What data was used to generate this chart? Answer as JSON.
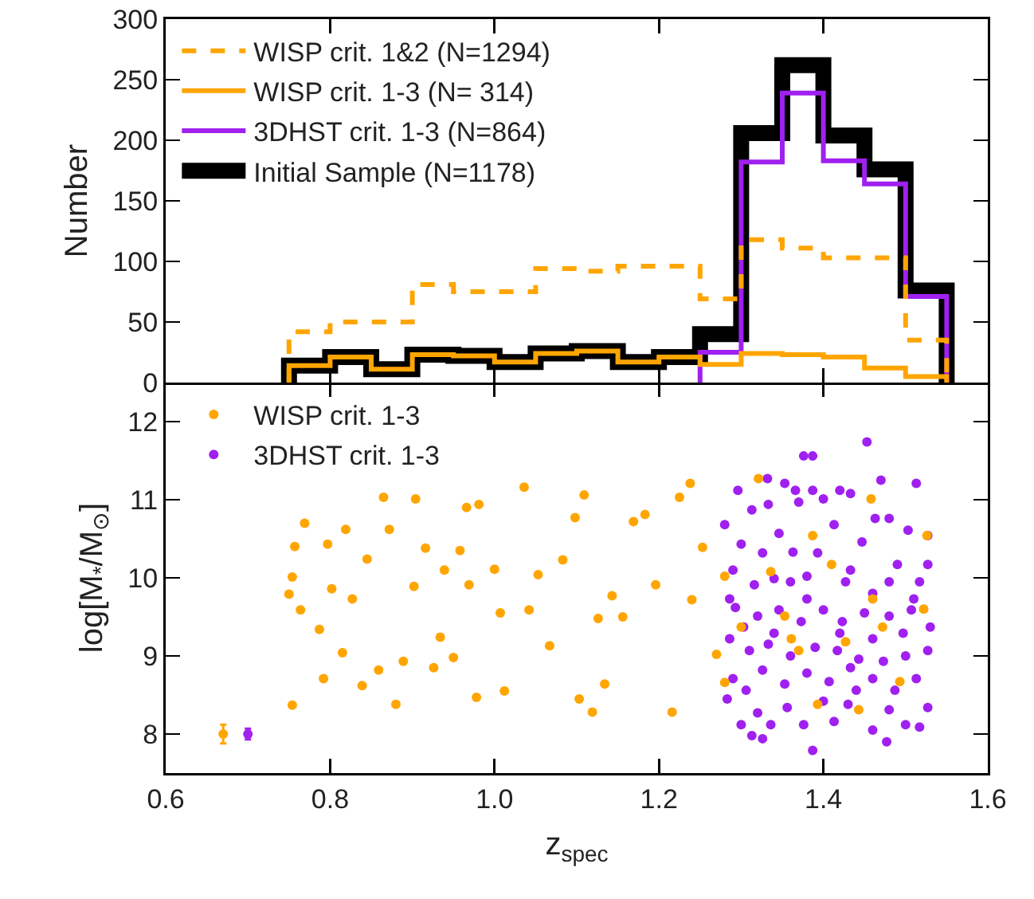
{
  "chart_data": [
    {
      "type": "histogram",
      "ylabel": "Number",
      "xlim": [
        0.6,
        1.6
      ],
      "xticks": [
        0.6,
        0.8,
        1,
        1.2,
        1.4,
        1.6
      ],
      "ylim": [
        0,
        300
      ],
      "yticks": [
        0,
        50,
        100,
        150,
        200,
        250,
        300
      ],
      "tick_labels": "y",
      "legend": "top left",
      "bins": [
        0.75,
        0.8,
        0.85,
        0.9,
        0.95,
        1.0,
        1.05,
        1.1,
        1.15,
        1.2,
        1.25,
        1.3,
        1.35,
        1.4,
        1.45,
        1.5,
        1.55
      ],
      "series": [
        {
          "name": "Initial Sample (N=1178)",
          "color": "#000000",
          "values": [
            14,
            21,
            11,
            23,
            22,
            17,
            24,
            26,
            17,
            21,
            40,
            206,
            262,
            204,
            176,
            76
          ]
        },
        {
          "name": "3DHST crit. 1-3 (N=864)",
          "color": "#a020f0",
          "bins": [
            1.25,
            1.3,
            1.35,
            1.4,
            1.45,
            1.5,
            1.55
          ],
          "values": [
            25,
            182,
            239,
            183,
            164,
            71
          ]
        },
        {
          "name": "WISP crit. 1-3 (N= 314)",
          "color": "#ffa500",
          "values": [
            14,
            21,
            11,
            23,
            22,
            17,
            24,
            26,
            17,
            21,
            15,
            24,
            23,
            21,
            12,
            5
          ]
        },
        {
          "name": "WISP crit. 1&2 (N=1294)",
          "color": "#ffa500",
          "line_style": "dashed",
          "values": [
            42,
            50,
            50,
            81,
            75,
            75,
            94,
            92,
            96,
            96,
            69,
            118,
            111,
            103,
            103,
            35
          ]
        }
      ]
    },
    {
      "type": "scatter",
      "xlabel": "z$_{spec}$",
      "ylabel": "log[M$_{*}$/M$_{⊙}$]",
      "xlim": [
        0.6,
        1.6
      ],
      "xticks": [
        0.6,
        0.8,
        {
          "value": 1,
          "label": "1.0"
        },
        1.2,
        1.4,
        1.6
      ],
      "ylim": [
        7.5,
        12.5
      ],
      "yticks": [
        8,
        9,
        10,
        11,
        12
      ],
      "legend": "top left",
      "marker": "circle",
      "series": [
        {
          "name": "3DHST crit. 1-3",
          "color": "#a020f0",
          "x": [
            1.453,
            1.376,
            1.387,
            1.513,
            1.332,
            1.353,
            1.366,
            1.387,
            1.42,
            1.47,
            1.296,
            1.313,
            1.333,
            1.37,
            1.4,
            1.433,
            1.463,
            1.503,
            1.527,
            1.28,
            1.3,
            1.346,
            1.363,
            1.413,
            1.48,
            1.49,
            1.527,
            1.29,
            1.316,
            1.34,
            1.38,
            1.433,
            1.46,
            1.517,
            1.293,
            1.32,
            1.346,
            1.373,
            1.4,
            1.423,
            1.45,
            1.48,
            1.507,
            1.53,
            1.286,
            1.31,
            1.333,
            1.36,
            1.39,
            1.417,
            1.443,
            1.473,
            1.5,
            1.527,
            1.29,
            1.306,
            1.326,
            1.353,
            1.38,
            1.407,
            1.433,
            1.46,
            1.487,
            1.513,
            1.283,
            1.3,
            1.313,
            1.326,
            1.336,
            1.356,
            1.376,
            1.387,
            1.413,
            1.43,
            1.44,
            1.46,
            1.477,
            1.5,
            1.517,
            1.527,
            1.286,
            1.303,
            1.326,
            1.36,
            1.393,
            1.427,
            1.447,
            1.48,
            1.51,
            1.34,
            1.38,
            1.42,
            1.46,
            1.497,
            1.32,
            1.4,
            1.48
          ],
          "values": [
            11.74,
            11.56,
            11.56,
            11.21,
            11.27,
            11.21,
            11.12,
            11.12,
            11.12,
            11.25,
            11.12,
            10.87,
            10.94,
            10.97,
            11.01,
            11.08,
            10.76,
            10.61,
            10.54,
            10.68,
            10.43,
            10.57,
            10.33,
            10.68,
            10.76,
            10.17,
            10.17,
            10.1,
            9.91,
            9.99,
            10.02,
            10.1,
            9.8,
            9.95,
            9.62,
            9.51,
            9.59,
            9.44,
            9.59,
            9.44,
            9.55,
            9.51,
            9.59,
            9.37,
            9.22,
            9.07,
            9.15,
            9.0,
            9.11,
            9.07,
            8.96,
            8.93,
            9.0,
            9.07,
            8.71,
            8.56,
            8.82,
            8.64,
            8.78,
            8.67,
            8.85,
            8.71,
            8.56,
            8.71,
            8.45,
            8.12,
            7.98,
            7.94,
            8.12,
            8.34,
            8.12,
            7.79,
            8.16,
            8.38,
            8.56,
            8.05,
            7.9,
            8.12,
            8.09,
            8.34,
            9.73,
            9.37,
            10.32,
            9.95,
            10.32,
            9.95,
            10.46,
            9.95,
            9.73,
            9.29,
            9.73,
            9.29,
            9.22,
            9.29,
            8.27,
            8.42,
            8.31
          ]
        },
        {
          "name": "WISP crit. 1-3",
          "color": "#ffa500",
          "x": [
            0.75,
            0.754,
            0.757,
            0.764,
            0.769,
            0.754,
            0.787,
            0.792,
            0.797,
            0.802,
            0.815,
            0.819,
            0.827,
            0.839,
            0.845,
            0.859,
            0.865,
            0.872,
            0.88,
            0.889,
            0.904,
            0.902,
            0.916,
            0.926,
            0.934,
            0.939,
            0.95,
            0.958,
            0.966,
            0.969,
            0.978,
            0.981,
            1.0,
            1.007,
            1.012,
            1.036,
            1.042,
            1.053,
            1.067,
            1.083,
            1.098,
            1.103,
            1.109,
            1.119,
            1.126,
            1.134,
            1.143,
            1.156,
            1.169,
            1.183,
            1.196,
            1.216,
            1.225,
            1.238,
            1.24,
            1.253,
            1.27,
            1.28,
            1.28,
            1.3,
            1.321,
            1.336,
            1.353,
            1.37,
            1.387,
            1.393,
            1.41,
            1.427,
            1.443,
            1.458,
            1.472,
            1.493,
            1.522,
            1.526,
            1.46,
            1.361
          ],
          "values": [
            9.79,
            10.01,
            10.4,
            9.59,
            10.7,
            8.37,
            9.34,
            8.71,
            10.43,
            9.86,
            9.04,
            10.62,
            9.73,
            8.62,
            10.24,
            8.82,
            11.03,
            10.62,
            8.38,
            8.93,
            11.01,
            9.89,
            10.38,
            8.85,
            9.24,
            10.1,
            8.98,
            10.35,
            10.9,
            9.91,
            8.47,
            10.94,
            10.11,
            9.55,
            8.55,
            11.16,
            9.59,
            10.04,
            9.13,
            10.23,
            10.77,
            8.45,
            11.06,
            8.28,
            9.48,
            8.64,
            9.77,
            9.5,
            10.72,
            10.81,
            9.91,
            8.28,
            11.03,
            11.21,
            9.72,
            10.39,
            9.02,
            8.66,
            10.02,
            9.37,
            11.27,
            10.08,
            9.51,
            9.07,
            10.54,
            8.38,
            10.17,
            9.18,
            8.31,
            11.01,
            9.37,
            8.67,
            9.6,
            10.54,
            9.73,
            9.22
          ]
        },
        {
          "color": "#ffa500",
          "x": [
            0.67
          ],
          "values": [
            8.0
          ],
          "errors": [
            0.12
          ]
        },
        {
          "color": "#a020f0",
          "x": [
            0.7
          ],
          "values": [
            8.0
          ],
          "errors": [
            0.07
          ]
        }
      ]
    }
  ]
}
